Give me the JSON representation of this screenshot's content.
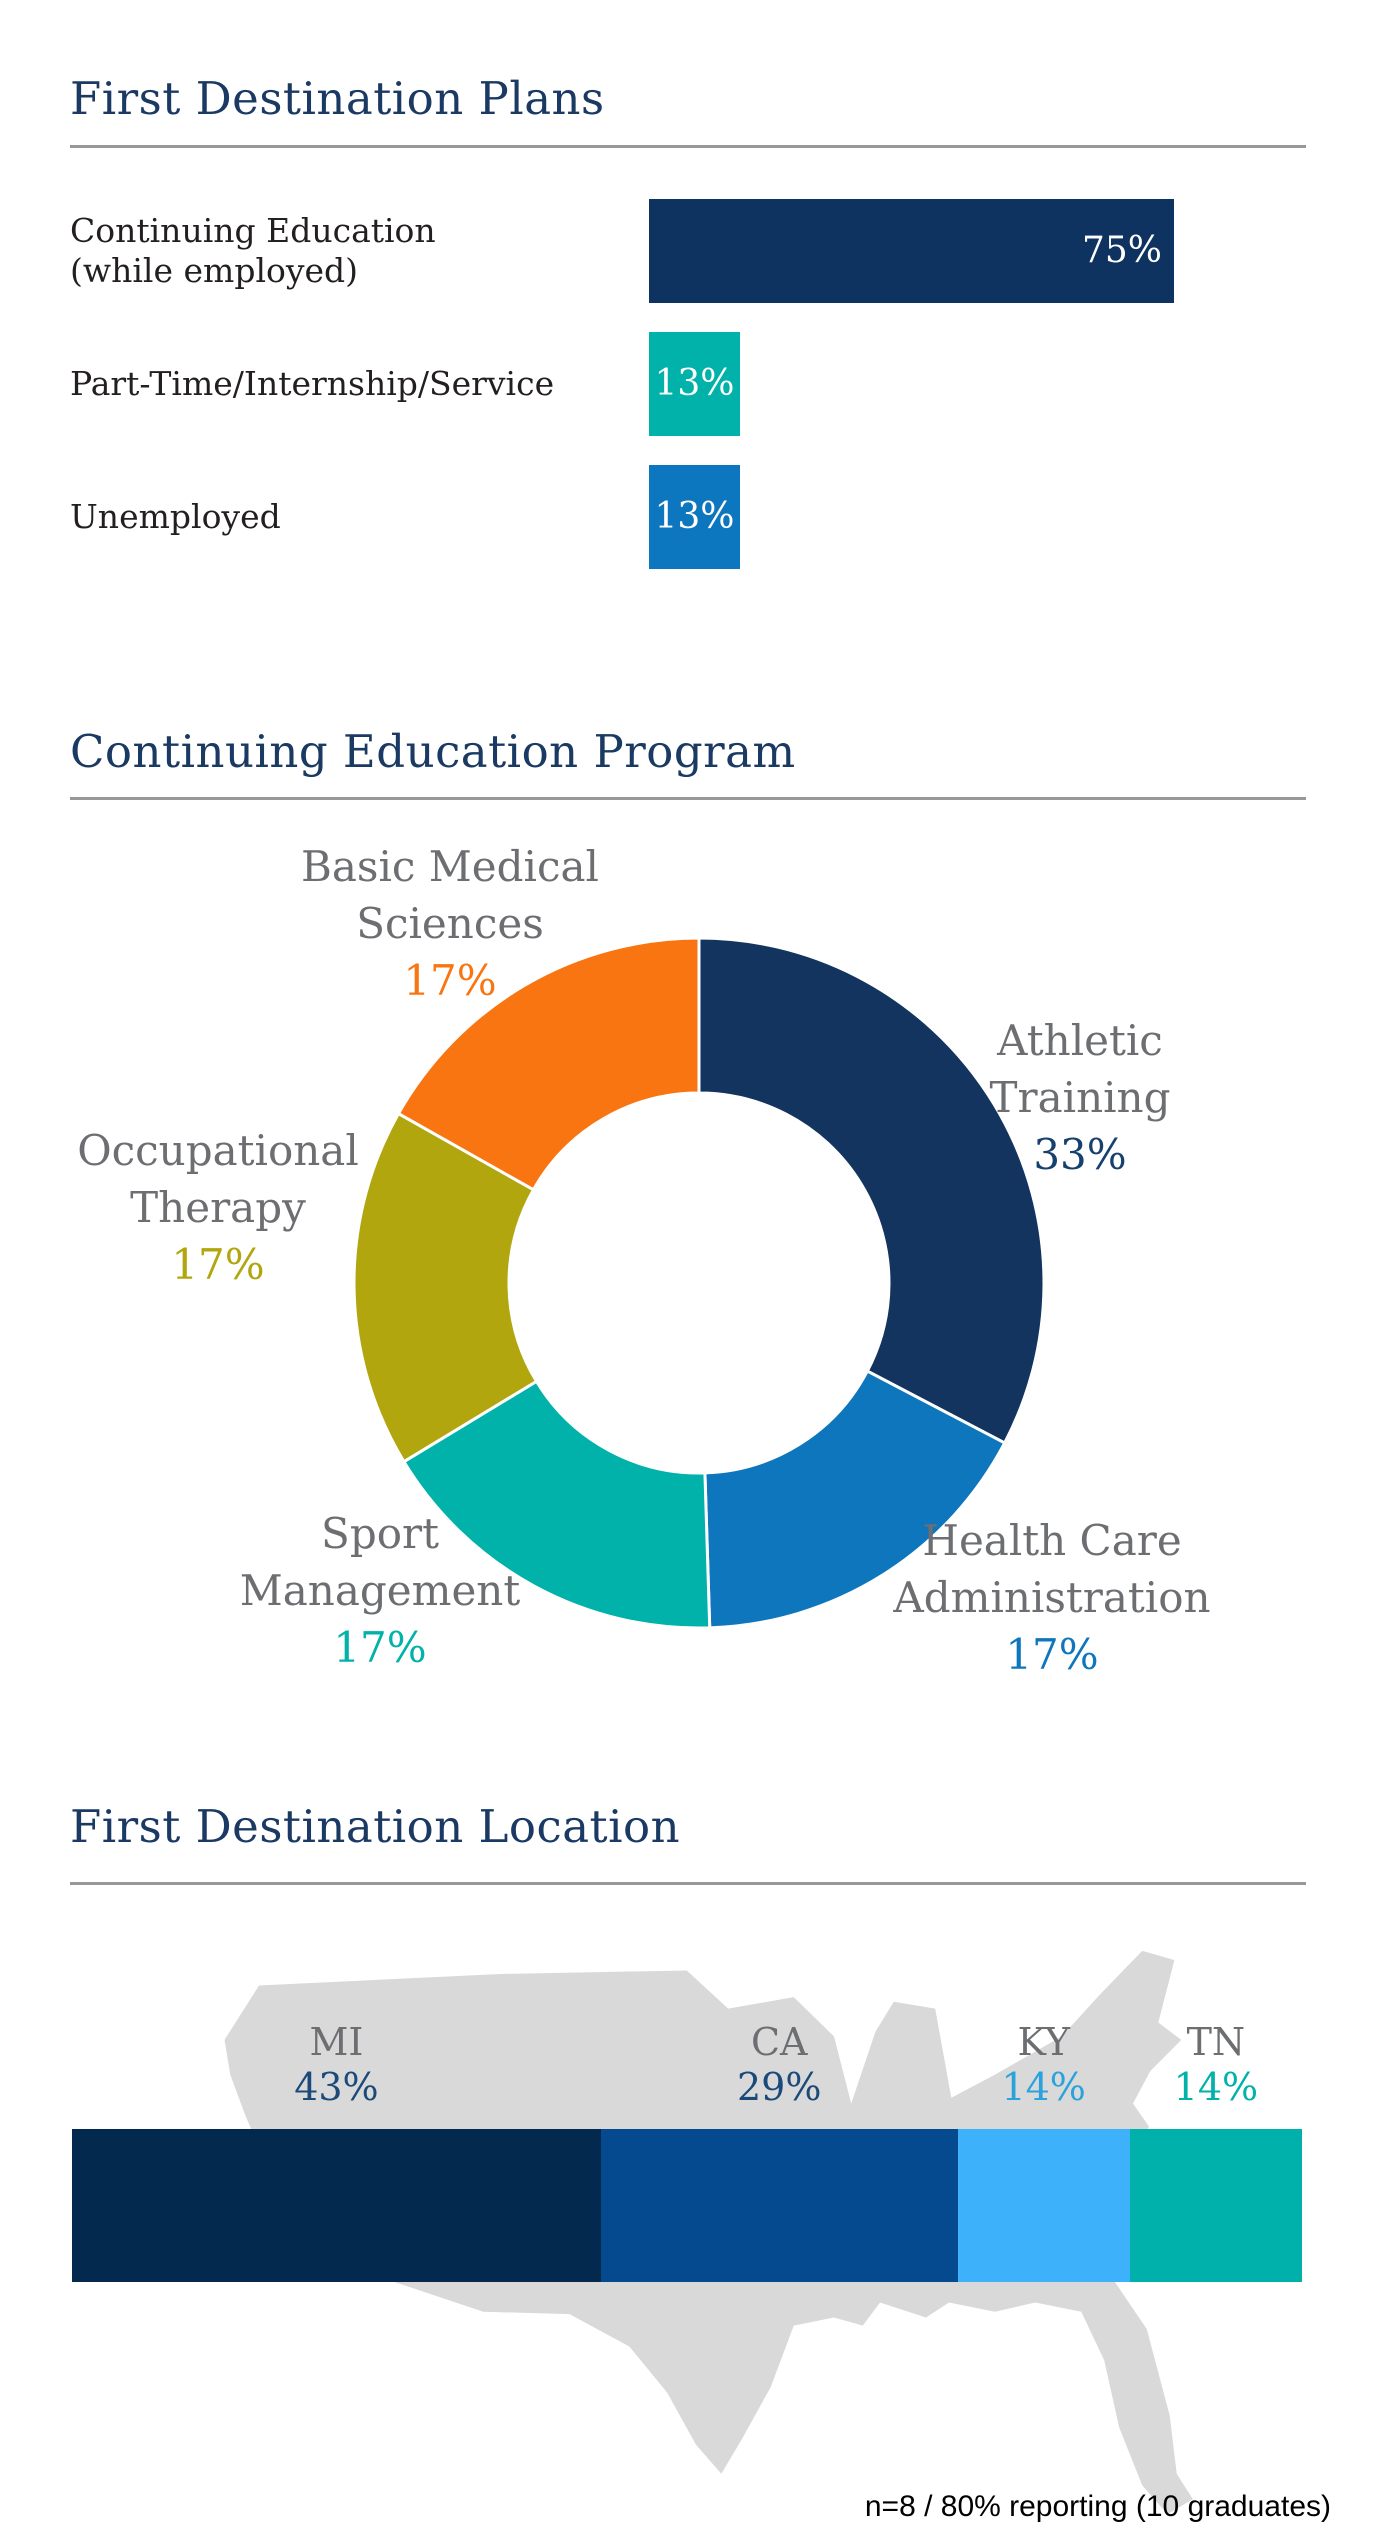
{
  "theme": {
    "title_color": "#1a3963",
    "rule_color": "#97989a",
    "text_color": "#231f20",
    "label_gray": "#6d6e71",
    "map_color": "#d9d9da",
    "background": "#ffffff"
  },
  "footer": {
    "note": "n=8 / 80% reporting (10 graduates)"
  },
  "chart_data": [
    {
      "type": "bar",
      "orientation": "horizontal",
      "title": "First Destination Plans",
      "categories": [
        "Continuing Education\n(while employed)",
        "Part-Time/Internship/Service",
        "Unemployed"
      ],
      "values": [
        75,
        13,
        13
      ],
      "value_labels": [
        "75%",
        "13%",
        "13%"
      ],
      "bar_colors": [
        "#0e3360",
        "#00b2a9",
        "#0c76be"
      ],
      "value_label_color": "#ffffff",
      "axis_max": 100,
      "grid": false
    },
    {
      "type": "donut",
      "title": "Continuing Education Program",
      "start_angle_deg": 0,
      "direction": "clockwise",
      "inner_radius_ratio": 0.55,
      "label_name_color": "#6d6e71",
      "segments": [
        {
          "label": "Athletic\nTraining",
          "value": 33,
          "value_label": "33%",
          "color": "#13345e",
          "value_label_color": "#16406e"
        },
        {
          "label": "Health Care\nAdministration",
          "value": 17,
          "value_label": "17%",
          "color": "#0e76bd",
          "value_label_color": "#0e76bd"
        },
        {
          "label": "Sport\nManagement",
          "value": 17,
          "value_label": "17%",
          "color": "#00b2a9",
          "value_label_color": "#00b2a9"
        },
        {
          "label": "Occupational\nTherapy",
          "value": 17,
          "value_label": "17%",
          "color": "#b1a60e",
          "value_label_color": "#b1a60e"
        },
        {
          "label": "Basic Medical\nSciences",
          "value": 17,
          "value_label": "17%",
          "color": "#f97511",
          "value_label_color": "#f97511"
        }
      ]
    },
    {
      "type": "stacked_bar",
      "title": "First Destination Location",
      "background": "us-map-silhouette",
      "label_color": "#6d6e71",
      "segments": [
        {
          "label": "MI",
          "value": 43,
          "value_label": "43%",
          "color": "#04294e",
          "value_label_color": "#1b4a7a"
        },
        {
          "label": "CA",
          "value": 29,
          "value_label": "29%",
          "color": "#054a8f",
          "value_label_color": "#1b4a7a"
        },
        {
          "label": "KY",
          "value": 14,
          "value_label": "14%",
          "color": "#3eb1fb",
          "value_label_color": "#2aa3dc"
        },
        {
          "label": "TN",
          "value": 14,
          "value_label": "14%",
          "color": "#00b1ab",
          "value_label_color": "#00b2a9"
        }
      ]
    }
  ]
}
